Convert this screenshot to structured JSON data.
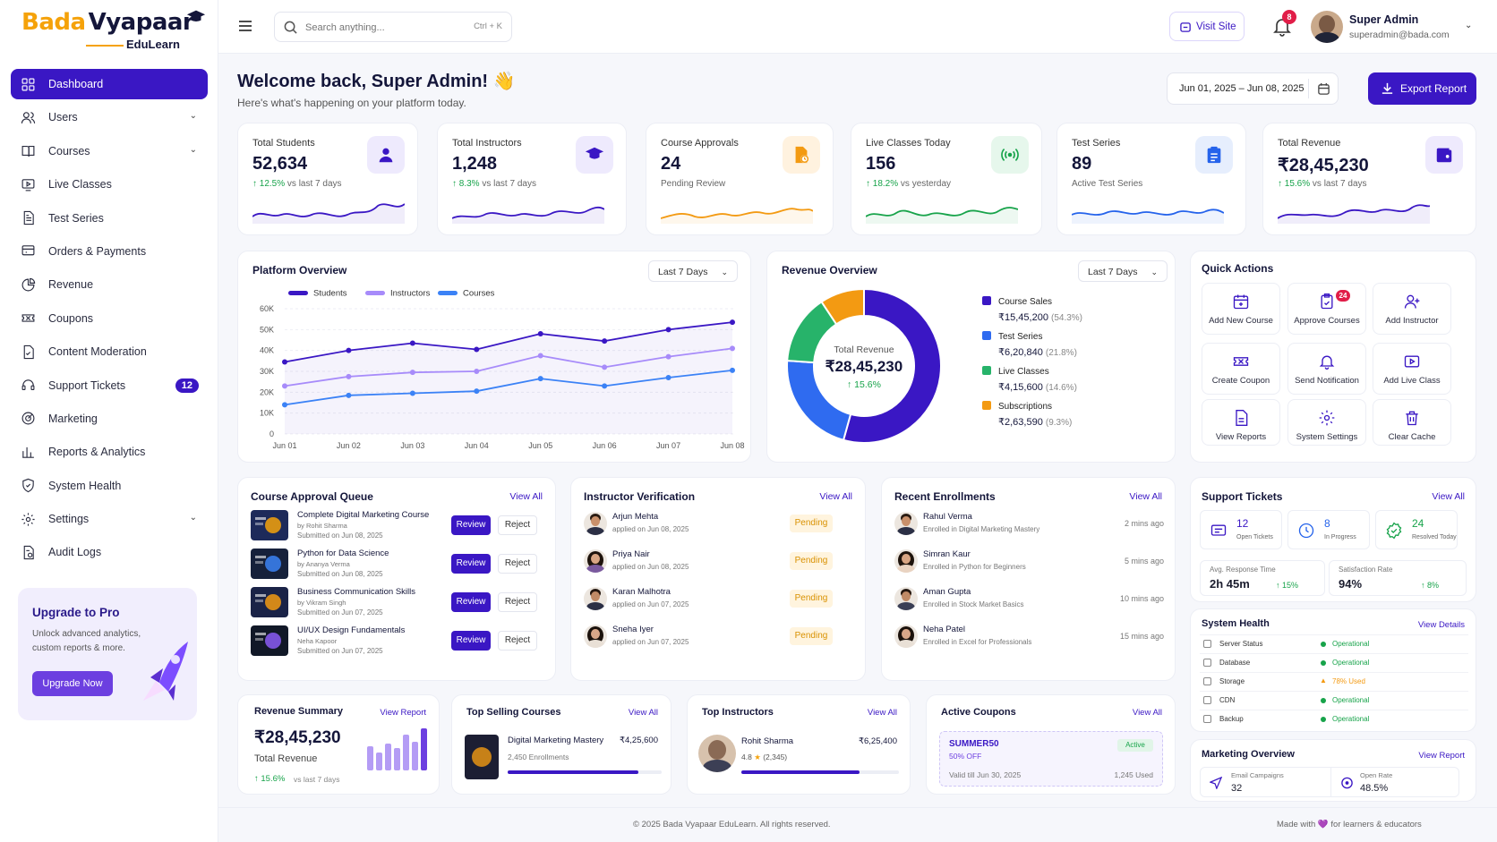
{
  "brand": {
    "name_part1": "Bada",
    "name_part2": "Vyapaar",
    "sub": "EduLearn"
  },
  "nav": [
    {
      "label": "Dashboard",
      "icon": "grid-icon",
      "active": true
    },
    {
      "label": "Users",
      "icon": "users-icon",
      "chevron": true
    },
    {
      "label": "Courses",
      "icon": "book-icon",
      "chevron": true
    },
    {
      "label": "Live Classes",
      "icon": "monitor-play-icon"
    },
    {
      "label": "Test Series",
      "icon": "document-icon"
    },
    {
      "label": "Orders & Payments",
      "icon": "cart-icon"
    },
    {
      "label": "Revenue",
      "icon": "pie-icon"
    },
    {
      "label": "Coupons",
      "icon": "ticket-icon"
    },
    {
      "label": "Content Moderation",
      "icon": "file-check-icon"
    },
    {
      "label": "Support Tickets",
      "icon": "headset-icon",
      "badge": "12"
    },
    {
      "label": "Marketing",
      "icon": "target-icon"
    },
    {
      "label": "Reports & Analytics",
      "icon": "bar-chart-icon"
    },
    {
      "label": "System Health",
      "icon": "shield-icon"
    },
    {
      "label": "Settings",
      "icon": "gear-icon",
      "chevron": true
    },
    {
      "label": "Audit Logs",
      "icon": "log-icon"
    }
  ],
  "upgrade": {
    "title": "Upgrade to Pro",
    "text1": "Unlock advanced analytics,",
    "text2": "custom reports & more.",
    "button": "Upgrade Now"
  },
  "header": {
    "search_placeholder": "Search anything...",
    "shortcut": "Ctrl + K",
    "visit_site": "Visit Site",
    "notif_count": "8",
    "user_name": "Super Admin",
    "user_email": "superadmin@bada.com"
  },
  "welcome": {
    "title": "Welcome back, Super Admin! 👋",
    "subtitle": "Here's what's happening on your platform today.",
    "date_range": "Jun 01, 2025 – Jun 08, 2025",
    "export": "Export Report"
  },
  "stats": [
    {
      "label": "Total Students",
      "value": "52,634",
      "change": "↑ 12.5%",
      "sub": "vs last 7 days",
      "color": "#3a17c4",
      "bg": "#eeeafd",
      "icon": "user-icon"
    },
    {
      "label": "Total Instructors",
      "value": "1,248",
      "change": "↑ 8.3%",
      "sub": "vs last 7 days",
      "color": "#3a17c4",
      "bg": "#eeeafd",
      "icon": "graduation-cap-icon"
    },
    {
      "label": "Course Approvals",
      "value": "24",
      "change": "",
      "sub": "Pending Review",
      "color": "#f39a12",
      "bg": "#fff2df",
      "icon": "file-clock-icon"
    },
    {
      "label": "Live Classes Today",
      "value": "156",
      "change": "↑ 18.2%",
      "sub": "vs yesterday",
      "color": "#17a34a",
      "bg": "#e6f7ec",
      "icon": "broadcast-icon"
    },
    {
      "label": "Test Series",
      "value": "89",
      "change": "",
      "sub": "Active Test Series",
      "color": "#2563eb",
      "bg": "#e6eefd",
      "icon": "clipboard-icon"
    },
    {
      "label": "Total Revenue",
      "value": "₹28,45,230",
      "change": "↑ 15.6%",
      "sub": "vs last 7 days",
      "color": "#3a17c4",
      "bg": "#eeeafd",
      "icon": "wallet-icon"
    }
  ],
  "platform": {
    "title": "Platform Overview",
    "range": "Last 7 Days"
  },
  "chart_data": {
    "type": "line",
    "title": "Platform Overview",
    "categories": [
      "Jun 01",
      "Jun 02",
      "Jun 03",
      "Jun 04",
      "Jun 05",
      "Jun 06",
      "Jun 07",
      "Jun 08"
    ],
    "yticks": [
      "60K",
      "50K",
      "40K",
      "30K",
      "20K",
      "10K",
      "0"
    ],
    "ylim": [
      0,
      60000
    ],
    "series": [
      {
        "name": "Students",
        "color": "#3a17c4",
        "values": [
          34500,
          40000,
          43500,
          40500,
          48000,
          44500,
          50000,
          53500
        ]
      },
      {
        "name": "Instructors",
        "color": "#a78bfa",
        "values": [
          23000,
          27500,
          29500,
          30000,
          37500,
          32000,
          37000,
          41000
        ]
      },
      {
        "name": "Courses",
        "color": "#3b82f6",
        "values": [
          14000,
          18500,
          19500,
          20500,
          26500,
          23000,
          27000,
          30500
        ]
      }
    ]
  },
  "revenue": {
    "title": "Revenue Overview",
    "range": "Last 7 Days",
    "center_label": "Total Revenue",
    "center_value": "₹28,45,230",
    "center_change": "↑ 15.6%",
    "items": [
      {
        "name": "Course Sales",
        "value": "₹15,45,200",
        "pct": "(54.3%)",
        "share": 54.3,
        "color": "#3a17c4"
      },
      {
        "name": "Test Series",
        "value": "₹6,20,840",
        "pct": "(21.8%)",
        "share": 21.8,
        "color": "#2f6bf0"
      },
      {
        "name": "Live Classes",
        "value": "₹4,15,600",
        "pct": "(14.6%)",
        "share": 14.6,
        "color": "#27b36a"
      },
      {
        "name": "Subscriptions",
        "value": "₹2,63,590",
        "pct": "(9.3%)",
        "share": 9.3,
        "color": "#f39a12"
      }
    ]
  },
  "quick": {
    "title": "Quick Actions",
    "items": [
      {
        "label": "Add New Course",
        "icon": "calendar-plus-icon"
      },
      {
        "label": "Approve Courses",
        "icon": "clipboard-check-icon",
        "badge": "24"
      },
      {
        "label": "Add Instructor",
        "icon": "user-plus-icon"
      },
      {
        "label": "Create Coupon",
        "icon": "ticket-icon"
      },
      {
        "label": "Send Notification",
        "icon": "bell-icon"
      },
      {
        "label": "Add Live Class",
        "icon": "video-icon"
      },
      {
        "label": "View Reports",
        "icon": "report-icon"
      },
      {
        "label": "System Settings",
        "icon": "gear-icon"
      },
      {
        "label": "Clear Cache",
        "icon": "trash-icon"
      }
    ]
  },
  "approval": {
    "title": "Course Approval Queue",
    "view_all": "View All",
    "review": "Review",
    "reject": "Reject",
    "items": [
      {
        "title": "Complete Digital Marketing Course",
        "by": "by Rohit Sharma",
        "date": "Submitted on Jun 08, 2025",
        "bg": "#1d2a5a"
      },
      {
        "title": "Python for Data Science",
        "by": "by Ananya Verma",
        "date": "Submitted on Jun 08, 2025",
        "bg": "#16213b"
      },
      {
        "title": "Business Communication Skills",
        "by": "by Vikram Singh",
        "date": "Submitted on Jun 07, 2025",
        "bg": "#1a2347"
      },
      {
        "title": "UI/UX Design Fundamentals",
        "by": "Neha Kapoor",
        "date": "Submitted on Jun 07, 2025",
        "bg": "#111827"
      }
    ]
  },
  "verification": {
    "title": "Instructor Verification",
    "view_all": "View All",
    "items": [
      {
        "name": "Arjun Mehta",
        "date": "applied on Jun 08, 2025",
        "status": "Pending"
      },
      {
        "name": "Priya Nair",
        "date": "applied on Jun 08, 2025",
        "status": "Pending"
      },
      {
        "name": "Karan Malhotra",
        "date": "applied on Jun 07, 2025",
        "status": "Pending"
      },
      {
        "name": "Sneha Iyer",
        "date": "applied on Jun 07, 2025",
        "status": "Pending"
      }
    ]
  },
  "enrollments": {
    "title": "Recent Enrollments",
    "view_all": "View All",
    "items": [
      {
        "name": "Rahul Verma",
        "course": "Enrolled in Digital Marketing Mastery",
        "time": "2 mins ago"
      },
      {
        "name": "Simran Kaur",
        "course": "Enrolled in Python for Beginners",
        "time": "5 mins ago"
      },
      {
        "name": "Aman Gupta",
        "course": "Enrolled in Stock Market Basics",
        "time": "10 mins ago"
      },
      {
        "name": "Neha Patel",
        "course": "Enrolled in Excel for Professionals",
        "time": "15 mins ago"
      }
    ]
  },
  "support": {
    "title": "Support Tickets",
    "view_all": "View All",
    "stats": [
      {
        "value": "12",
        "label": "Open Tickets",
        "color": "#3a17c4"
      },
      {
        "value": "8",
        "label": "In Progress",
        "color": "#2563eb"
      },
      {
        "value": "24",
        "label": "Resolved Today",
        "color": "#17a34a"
      }
    ],
    "resp_label": "Avg. Response Time",
    "resp_value": "2h 45m",
    "resp_change": "↑ 15%",
    "sat_label": "Satisfaction Rate",
    "sat_value": "94%",
    "sat_change": "↑ 8%"
  },
  "health": {
    "title": "System Health",
    "view": "View Details",
    "items": [
      {
        "name": "Server Status",
        "status": "Operational",
        "color": "#17a34a"
      },
      {
        "name": "Database",
        "status": "Operational",
        "color": "#17a34a"
      },
      {
        "name": "Storage",
        "status": "78% Used",
        "color": "#f39a12"
      },
      {
        "name": "CDN",
        "status": "Operational",
        "color": "#17a34a"
      },
      {
        "name": "Backup",
        "status": "Operational",
        "color": "#17a34a"
      }
    ]
  },
  "marketing": {
    "title": "Marketing Overview",
    "view": "View Report",
    "email_label": "Email Campaigns",
    "email_value": "32",
    "open_label": "Open Rate",
    "open_value": "48.5%"
  },
  "rev_summary": {
    "title": "Revenue Summary",
    "view": "View Report",
    "value": "₹28,45,230",
    "label": "Total Revenue",
    "change": "↑ 15.6%",
    "sub": "vs last 7 days",
    "bars": [
      0.55,
      0.4,
      0.6,
      0.5,
      0.8,
      0.65,
      0.95
    ]
  },
  "top_course": {
    "title": "Top Selling Courses",
    "view": "View All",
    "name": "Digital Marketing Mastery",
    "amount": "₹4,25,600",
    "enroll": "2,450 Enrollments",
    "progress": 0.85
  },
  "top_instr": {
    "title": "Top Instructors",
    "view": "View All",
    "name": "Rohit Sharma",
    "amount": "₹6,25,400",
    "rating": "4.8",
    "reviews": "(2,345)",
    "progress": 0.75
  },
  "coupons": {
    "title": "Active Coupons",
    "view": "View All",
    "code": "SUMMER50",
    "off": "50% OFF",
    "status": "Active",
    "valid": "Valid till Jun 30, 2025",
    "used": "1,245 Used"
  },
  "footer": {
    "copy": "© 2025 Bada Vyapaar EduLearn. All rights reserved.",
    "made": "Made with 💜 for learners & educators"
  }
}
